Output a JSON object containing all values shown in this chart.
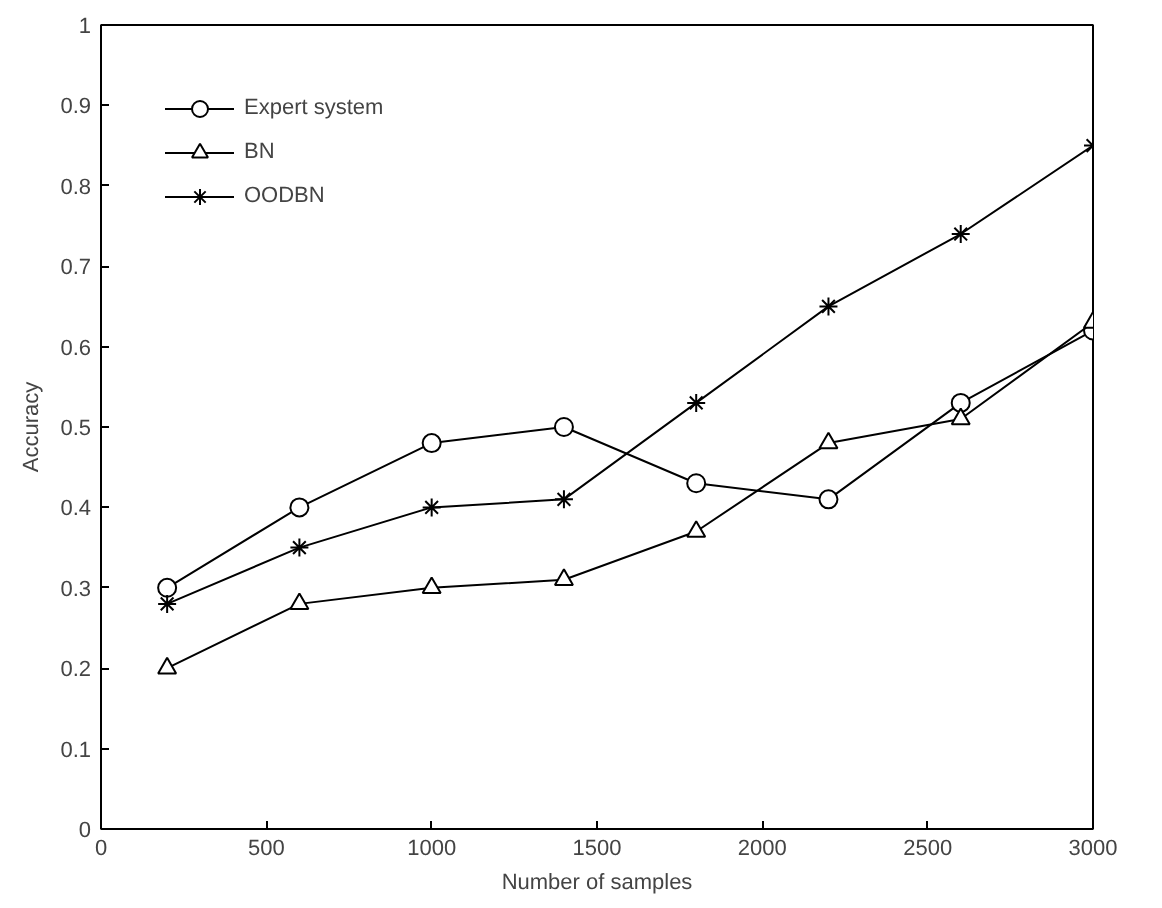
{
  "chart_data": {
    "type": "line",
    "xlabel": "Number of samples",
    "ylabel": "Accuracy",
    "x": [
      200,
      600,
      1000,
      1400,
      1800,
      2200,
      2600,
      3000
    ],
    "series": [
      {
        "name": "Expert system",
        "color": "#000000",
        "marker": "circle",
        "values": [
          0.3,
          0.4,
          0.48,
          0.5,
          0.43,
          0.41,
          0.53,
          0.62
        ]
      },
      {
        "name": "BN",
        "color": "#000000",
        "marker": "triangle",
        "values": [
          0.2,
          0.28,
          0.3,
          0.31,
          0.37,
          0.48,
          0.51,
          0.63
        ]
      },
      {
        "name": "OODBN",
        "color": "#000000",
        "marker": "cross",
        "values": [
          0.28,
          0.35,
          0.4,
          0.41,
          0.53,
          0.65,
          0.74,
          0.85
        ]
      }
    ],
    "xlim": [
      0,
      3000
    ],
    "ylim": [
      0,
      1
    ],
    "xticks": [
      0,
      500,
      1000,
      1500,
      2000,
      2500,
      3000
    ],
    "yticks": [
      0,
      0.1,
      0.2,
      0.3,
      0.4,
      0.5,
      0.6,
      0.7,
      0.8,
      0.9,
      1
    ],
    "legend": "top left",
    "grid": false,
    "line_style": "solid"
  }
}
